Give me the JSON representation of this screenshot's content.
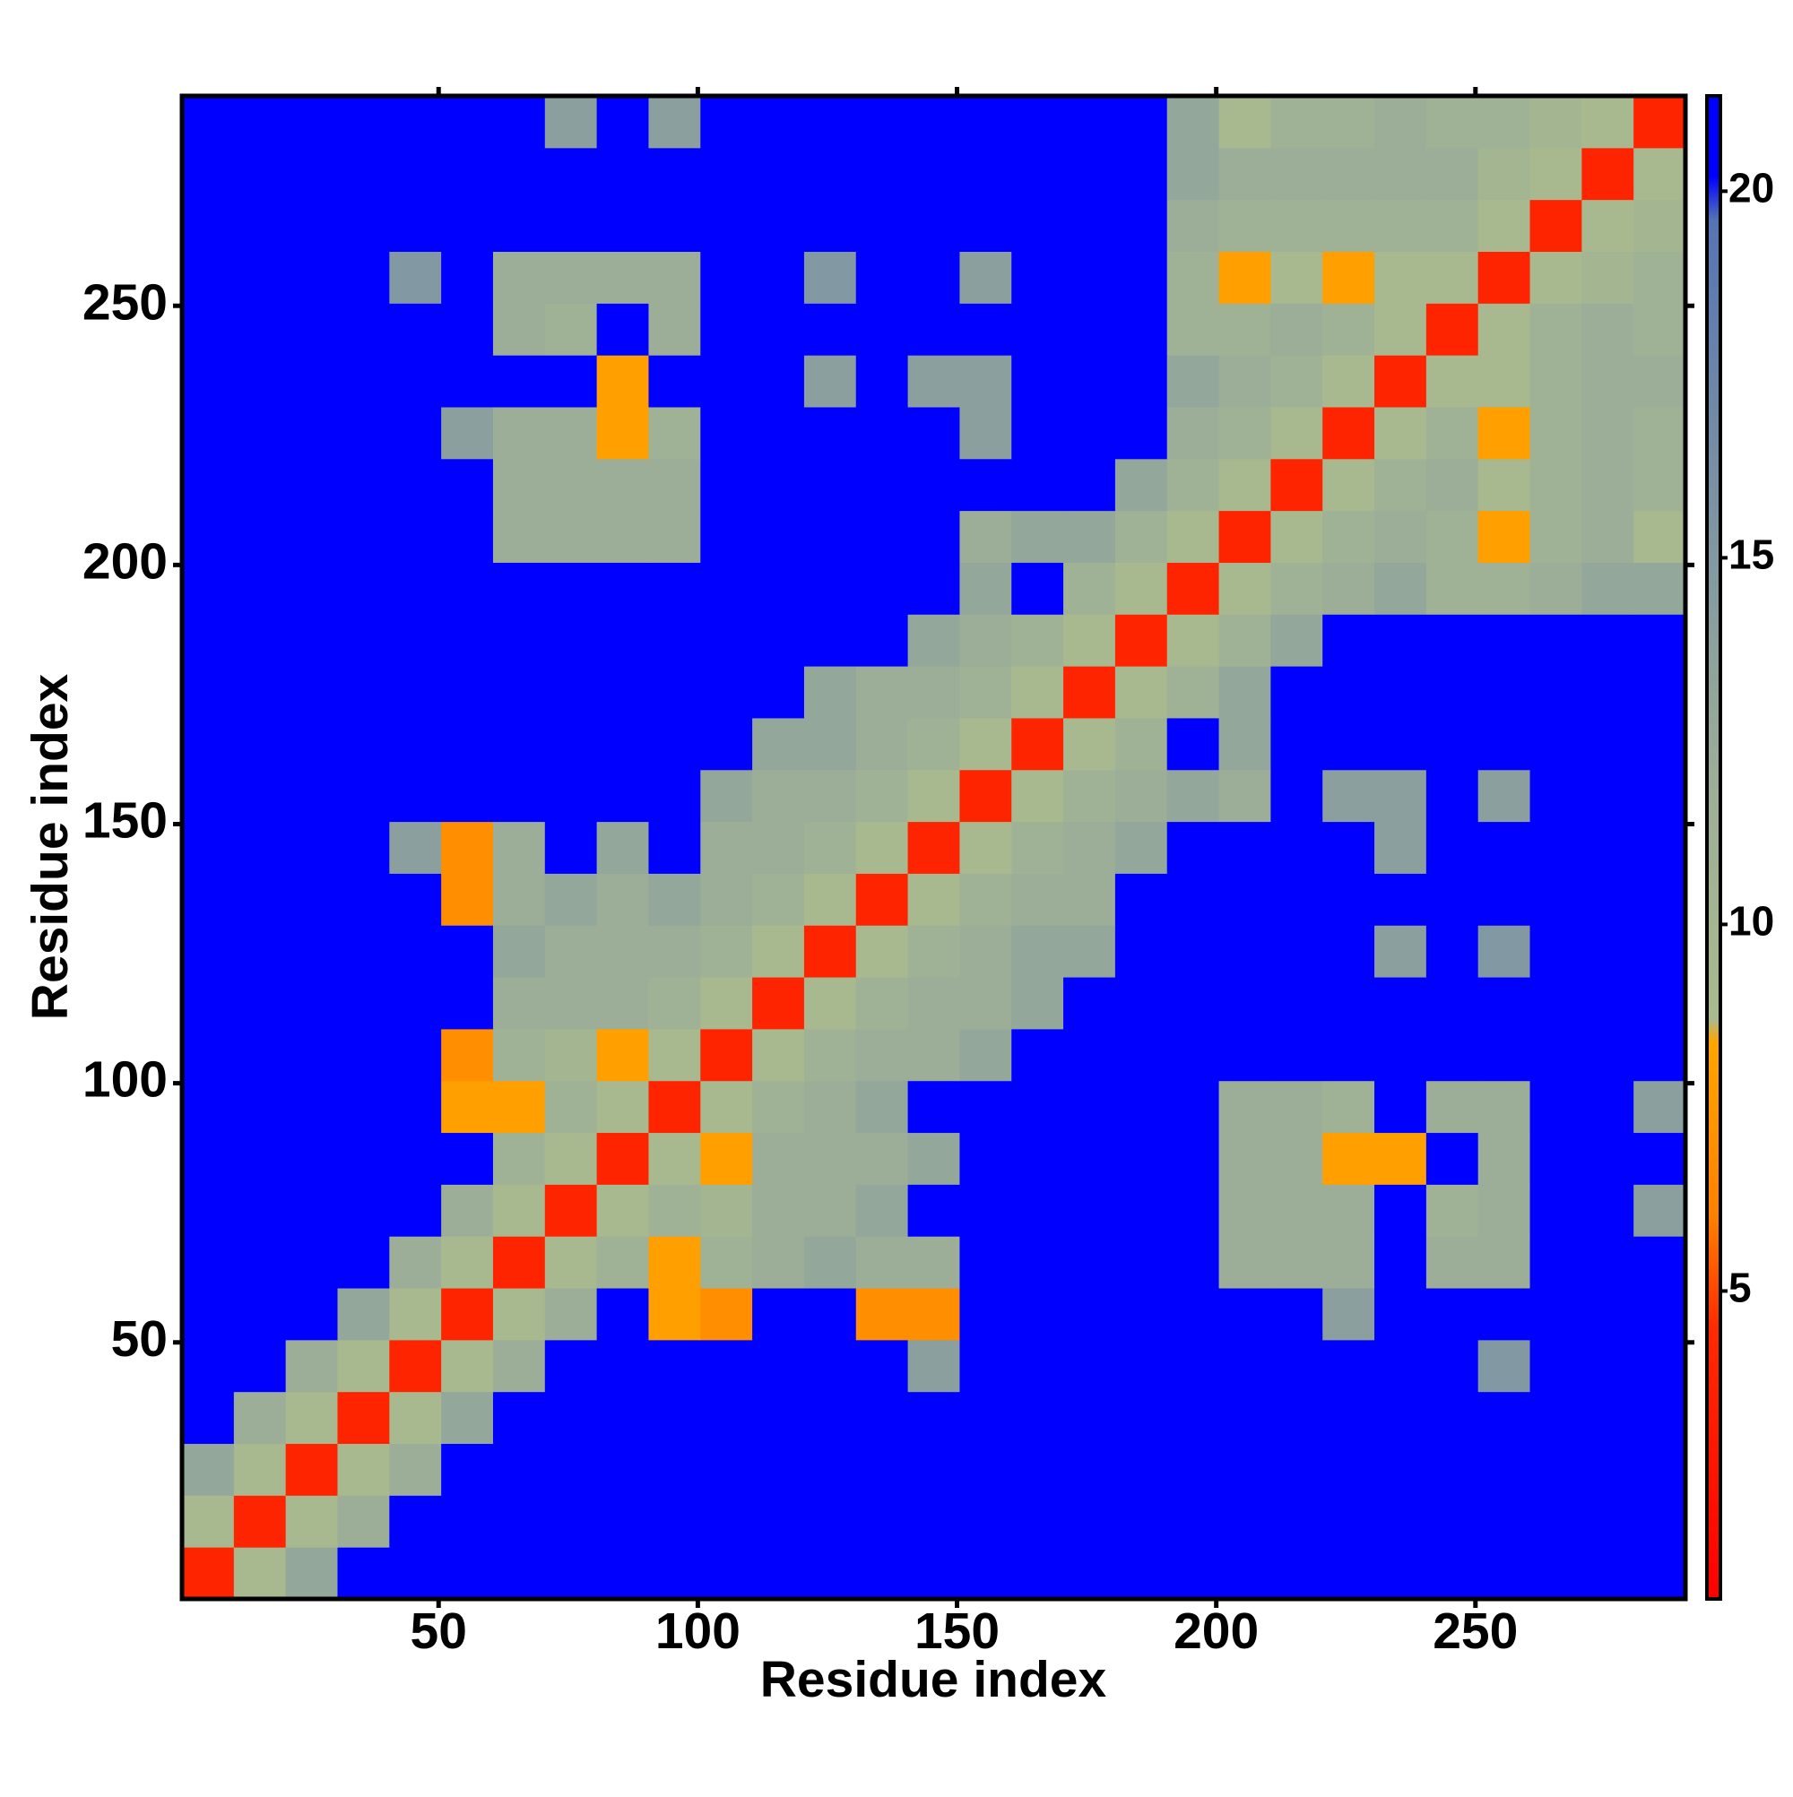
{
  "chart_data": {
    "type": "heatmap",
    "xlabel": "Residue index",
    "ylabel": "Residue index",
    "xbins": [
      0.5,
      10.5,
      20.5,
      30.5,
      40.5,
      50.5,
      60.5,
      70.5,
      80.5,
      90.5,
      100.5,
      110.5,
      120.5,
      130.5,
      140.5,
      150.5,
      160.5,
      170.5,
      180.5,
      190.5,
      200.5,
      210.5,
      220.5,
      230.5,
      240.5,
      250.5,
      260.5,
      270.5,
      280.5,
      290.5
    ],
    "ybins": [
      0.5,
      10.5,
      20.5,
      30.5,
      40.5,
      50.5,
      60.5,
      70.5,
      80.5,
      90.5,
      100.5,
      110.5,
      120.5,
      130.5,
      140.5,
      150.5,
      160.5,
      170.5,
      180.5,
      190.5,
      200.5,
      210.5,
      220.5,
      230.5,
      240.5,
      250.5,
      260.5,
      270.5,
      280.5,
      290.5
    ],
    "xlim": [
      0.5,
      290.5
    ],
    "ylim": [
      0.5,
      290.5
    ],
    "xticks": [
      50,
      100,
      150,
      200,
      250
    ],
    "yticks": [
      50,
      100,
      150,
      200,
      250
    ],
    "z": [
      [
        4,
        9,
        13,
        21,
        21,
        21,
        21,
        21,
        21,
        21,
        21,
        21,
        21,
        21,
        21,
        21,
        21,
        21,
        21,
        21,
        21,
        21,
        21,
        21,
        21,
        21,
        21,
        21,
        21
      ],
      [
        9,
        4,
        9,
        12,
        21,
        21,
        21,
        21,
        21,
        21,
        21,
        21,
        21,
        21,
        21,
        21,
        21,
        21,
        21,
        21,
        21,
        21,
        21,
        21,
        21,
        21,
        21,
        21,
        21
      ],
      [
        13,
        9,
        4,
        9,
        12,
        21,
        21,
        21,
        21,
        21,
        21,
        21,
        21,
        21,
        21,
        21,
        21,
        21,
        21,
        21,
        21,
        21,
        21,
        21,
        21,
        21,
        21,
        21,
        21
      ],
      [
        21,
        12,
        9,
        4,
        9,
        13,
        21,
        21,
        21,
        21,
        21,
        21,
        21,
        21,
        21,
        21,
        21,
        21,
        21,
        21,
        21,
        21,
        21,
        21,
        21,
        21,
        21,
        21,
        21
      ],
      [
        21,
        21,
        12,
        9,
        4,
        9,
        12,
        21,
        21,
        21,
        21,
        21,
        21,
        21,
        14,
        21,
        21,
        21,
        21,
        21,
        21,
        21,
        21,
        21,
        21,
        15,
        21,
        21,
        21
      ],
      [
        21,
        21,
        21,
        13,
        9,
        4,
        9,
        12,
        21,
        8,
        7,
        21,
        21,
        7,
        7,
        21,
        21,
        21,
        21,
        21,
        21,
        21,
        14,
        21,
        21,
        21,
        21,
        21,
        21
      ],
      [
        21,
        21,
        21,
        21,
        12,
        9,
        4,
        9,
        11,
        8,
        11,
        12,
        13,
        12,
        12,
        21,
        21,
        21,
        21,
        21,
        12,
        12,
        12,
        21,
        12,
        12,
        21,
        21,
        21
      ],
      [
        21,
        21,
        21,
        21,
        21,
        12,
        9,
        4,
        9,
        11,
        10,
        12,
        12,
        13,
        21,
        21,
        21,
        21,
        21,
        21,
        12,
        12,
        12,
        21,
        11,
        12,
        21,
        21,
        14
      ],
      [
        21,
        21,
        21,
        21,
        21,
        21,
        11,
        9,
        4,
        9,
        8,
        12,
        12,
        12,
        13,
        21,
        21,
        21,
        21,
        21,
        12,
        12,
        8,
        8,
        21,
        12,
        21,
        21,
        21
      ],
      [
        21,
        21,
        21,
        21,
        21,
        8,
        8,
        11,
        9,
        4,
        9,
        11,
        12,
        13,
        21,
        21,
        21,
        21,
        21,
        21,
        12,
        12,
        11,
        21,
        12,
        12,
        21,
        21,
        14
      ],
      [
        21,
        21,
        21,
        21,
        21,
        7,
        11,
        10,
        8,
        9,
        4,
        9,
        11,
        12,
        12,
        13,
        21,
        21,
        21,
        21,
        21,
        21,
        21,
        21,
        21,
        21,
        21,
        21,
        21
      ],
      [
        21,
        21,
        21,
        21,
        21,
        21,
        12,
        12,
        12,
        11,
        9,
        4,
        9,
        11,
        12,
        12,
        13,
        21,
        21,
        21,
        21,
        21,
        21,
        21,
        21,
        21,
        21,
        21,
        21
      ],
      [
        21,
        21,
        21,
        21,
        21,
        21,
        13,
        12,
        12,
        12,
        11,
        9,
        4,
        9,
        11,
        12,
        13,
        13,
        21,
        21,
        21,
        21,
        21,
        14,
        21,
        15,
        21,
        21,
        21
      ],
      [
        21,
        21,
        21,
        21,
        21,
        7,
        12,
        13,
        12,
        13,
        12,
        11,
        9,
        4,
        9,
        11,
        12,
        12,
        21,
        21,
        21,
        21,
        21,
        21,
        21,
        21,
        21,
        21,
        21
      ],
      [
        21,
        21,
        21,
        21,
        14,
        7,
        12,
        21,
        13,
        21,
        12,
        12,
        11,
        9,
        4,
        9,
        11,
        12,
        13,
        21,
        21,
        21,
        21,
        14,
        21,
        21,
        21,
        21,
        21
      ],
      [
        21,
        21,
        21,
        21,
        21,
        21,
        21,
        21,
        21,
        21,
        13,
        12,
        12,
        11,
        9,
        4,
        9,
        11,
        12,
        13,
        12,
        21,
        14,
        14,
        21,
        14,
        21,
        21,
        21
      ],
      [
        21,
        21,
        21,
        21,
        21,
        21,
        21,
        21,
        21,
        21,
        21,
        13,
        13,
        12,
        11,
        9,
        4,
        9,
        11,
        21,
        13,
        21,
        21,
        21,
        21,
        21,
        21,
        21,
        21
      ],
      [
        21,
        21,
        21,
        21,
        21,
        21,
        21,
        21,
        21,
        21,
        21,
        21,
        13,
        12,
        12,
        11,
        9,
        4,
        9,
        11,
        13,
        21,
        21,
        21,
        21,
        21,
        21,
        21,
        21
      ],
      [
        21,
        21,
        21,
        21,
        21,
        21,
        21,
        21,
        21,
        21,
        21,
        21,
        21,
        21,
        13,
        12,
        11,
        9,
        4,
        9,
        11,
        13,
        21,
        21,
        21,
        21,
        21,
        21,
        21
      ],
      [
        21,
        21,
        21,
        21,
        21,
        21,
        21,
        21,
        21,
        21,
        21,
        21,
        21,
        21,
        21,
        13,
        21,
        11,
        9,
        4,
        9,
        11,
        12,
        13,
        11,
        11,
        12,
        13,
        13
      ],
      [
        21,
        21,
        21,
        21,
        21,
        21,
        12,
        12,
        12,
        12,
        21,
        21,
        21,
        21,
        21,
        12,
        13,
        13,
        11,
        9,
        4,
        9,
        11,
        12,
        11,
        8,
        11,
        12,
        9
      ],
      [
        21,
        21,
        21,
        21,
        21,
        21,
        12,
        12,
        12,
        12,
        21,
        21,
        21,
        21,
        21,
        21,
        21,
        21,
        13,
        11,
        9,
        4,
        9,
        11,
        12,
        9,
        11,
        12,
        11
      ],
      [
        21,
        21,
        21,
        21,
        21,
        14,
        12,
        12,
        8,
        11,
        21,
        21,
        21,
        21,
        21,
        14,
        21,
        21,
        21,
        12,
        11,
        9,
        4,
        9,
        11,
        8,
        11,
        12,
        11
      ],
      [
        21,
        21,
        21,
        21,
        21,
        21,
        21,
        21,
        8,
        21,
        21,
        21,
        14,
        21,
        14,
        14,
        21,
        21,
        21,
        13,
        12,
        11,
        9,
        4,
        9,
        9,
        11,
        12,
        12
      ],
      [
        21,
        21,
        21,
        21,
        21,
        21,
        12,
        11,
        21,
        12,
        21,
        21,
        21,
        21,
        21,
        21,
        21,
        21,
        21,
        11,
        11,
        12,
        11,
        9,
        4,
        9,
        11,
        12,
        11
      ],
      [
        21,
        21,
        21,
        21,
        15,
        21,
        12,
        12,
        12,
        12,
        21,
        21,
        15,
        21,
        21,
        14,
        21,
        21,
        21,
        11,
        8,
        9,
        8,
        9,
        9,
        4,
        9,
        10,
        11
      ],
      [
        21,
        21,
        21,
        21,
        21,
        21,
        21,
        21,
        21,
        21,
        21,
        21,
        21,
        21,
        21,
        21,
        21,
        21,
        21,
        12,
        11,
        11,
        11,
        11,
        11,
        9,
        4,
        9,
        10
      ],
      [
        21,
        21,
        21,
        21,
        21,
        21,
        21,
        21,
        21,
        21,
        21,
        21,
        21,
        21,
        21,
        21,
        21,
        21,
        21,
        13,
        12,
        12,
        12,
        12,
        12,
        10,
        9,
        4,
        9
      ],
      [
        21,
        21,
        21,
        21,
        21,
        21,
        21,
        14,
        21,
        14,
        21,
        21,
        21,
        21,
        21,
        21,
        21,
        21,
        21,
        13,
        9,
        11,
        11,
        12,
        11,
        11,
        10,
        9,
        4
      ]
    ],
    "clim": [
      0.8,
      21.3
    ],
    "cticks": [
      5,
      10,
      15,
      20
    ],
    "colorscale": [
      [
        0.8,
        "#ff0000"
      ],
      [
        4.5,
        "#ff2a00"
      ],
      [
        6,
        "#ff8000"
      ],
      [
        8.4,
        "#ffa500"
      ],
      [
        8.7,
        "#a9ba8e"
      ],
      [
        12,
        "#9cae98"
      ],
      [
        17,
        "#7189a8"
      ],
      [
        19.6,
        "#5574b4"
      ],
      [
        20.2,
        "#0000ff"
      ],
      [
        21.3,
        "#0000ff"
      ]
    ]
  }
}
